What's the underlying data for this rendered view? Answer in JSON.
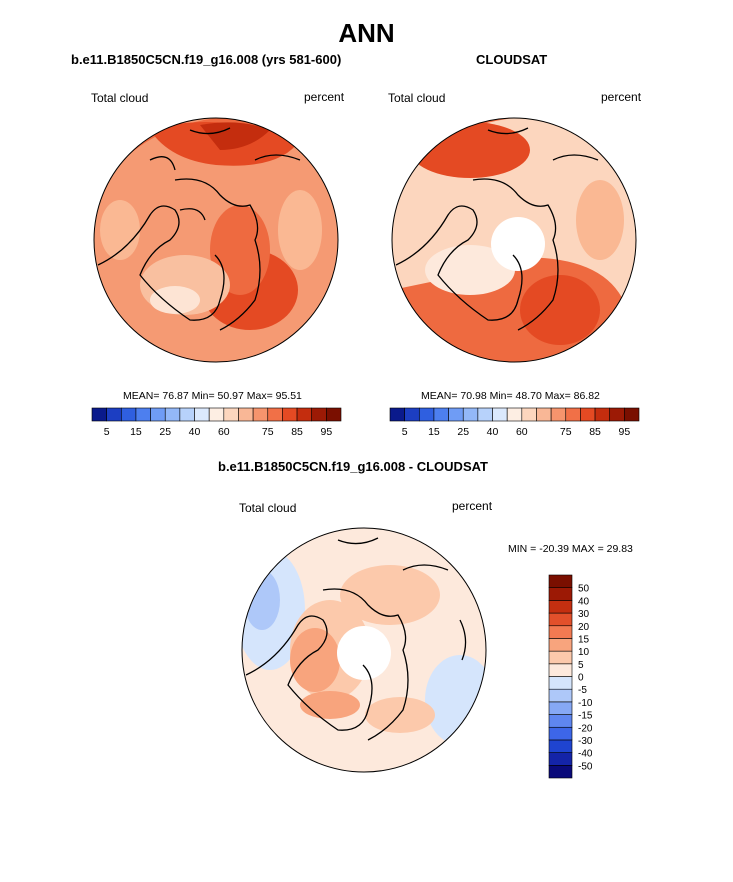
{
  "title": "ANN",
  "panels": [
    {
      "subtitle": "b.e11.B1850C5CN.f19_g16.008 (yrs 581-600)",
      "left_label": "Total cloud",
      "right_label": "percent",
      "stats": {
        "mean": "76.87",
        "min": "50.97",
        "max": "95.51"
      },
      "stats_text": "MEAN=  76.87  Min=  50.97  Max=  95.51"
    },
    {
      "subtitle": "CLOUDSAT",
      "left_label": "Total cloud",
      "right_label": "percent",
      "stats": {
        "mean": "70.98",
        "min": "48.70",
        "max": "86.82"
      },
      "stats_text": "MEAN=  70.98  Min=  48.70  Max=  86.82"
    },
    {
      "subtitle": "b.e11.B1850C5CN.f19_g16.008 - CLOUDSAT",
      "left_label": "Total cloud",
      "right_label": "percent",
      "stats": {
        "min": "-20.39",
        "max": "29.83"
      },
      "stats_text": "MIN = -20.39 MAX =  29.83"
    }
  ],
  "chart_data": [
    {
      "type": "heatmap",
      "projection": "north-polar-stereographic",
      "variable": "Total cloud",
      "units": "percent",
      "mean": 76.87,
      "min": 50.97,
      "max": 95.51,
      "colorbar": {
        "orientation": "horizontal",
        "levels": [
          5,
          10,
          15,
          20,
          25,
          30,
          40,
          50,
          60,
          65,
          70,
          75,
          80,
          85,
          90,
          95
        ],
        "tick_labels": [
          "5",
          "15",
          "25",
          "40",
          "60",
          "75",
          "85",
          "95"
        ],
        "colors": [
          "#0a1a8c",
          "#1c3ec2",
          "#2f5fe0",
          "#4d7fef",
          "#6f9cf5",
          "#93b8f8",
          "#b7d2fb",
          "#dbe9fd",
          "#fdeee3",
          "#fcd6be",
          "#f9b796",
          "#f6946d",
          "#f17047",
          "#e44a23",
          "#c42d0e",
          "#9c1a05",
          "#7a0f00"
        ]
      }
    },
    {
      "type": "heatmap",
      "projection": "north-polar-stereographic",
      "variable": "Total cloud",
      "units": "percent",
      "mean": 70.98,
      "min": 48.7,
      "max": 86.82,
      "colorbar": {
        "orientation": "horizontal",
        "levels": [
          5,
          10,
          15,
          20,
          25,
          30,
          40,
          50,
          60,
          65,
          70,
          75,
          80,
          85,
          90,
          95
        ],
        "tick_labels": [
          "5",
          "15",
          "25",
          "40",
          "60",
          "75",
          "85",
          "95"
        ],
        "colors": [
          "#0a1a8c",
          "#1c3ec2",
          "#2f5fe0",
          "#4d7fef",
          "#6f9cf5",
          "#93b8f8",
          "#b7d2fb",
          "#dbe9fd",
          "#fdeee3",
          "#fcd6be",
          "#f9b796",
          "#f6946d",
          "#f17047",
          "#e44a23",
          "#c42d0e",
          "#9c1a05",
          "#7a0f00"
        ]
      }
    },
    {
      "type": "heatmap",
      "projection": "north-polar-stereographic",
      "variable": "Total cloud difference",
      "units": "percent",
      "min": -20.39,
      "max": 29.83,
      "colorbar": {
        "orientation": "vertical",
        "levels": [
          -50,
          -40,
          -30,
          -20,
          -15,
          -10,
          -5,
          0,
          5,
          10,
          15,
          20,
          30,
          40,
          50
        ],
        "tick_labels": [
          "-50",
          "-40",
          "-30",
          "-20",
          "-15",
          "-10",
          "-5",
          "0",
          "5",
          "10",
          "15",
          "20",
          "30",
          "40",
          "50"
        ],
        "colors": [
          "#0a0a7a",
          "#1424a8",
          "#1f44d0",
          "#3d66e8",
          "#5f86f0",
          "#86a8f5",
          "#aec8f9",
          "#d5e5fc",
          "#fde9dc",
          "#fcc9ab",
          "#f8a47d",
          "#f27a52",
          "#e2502b",
          "#c42f10",
          "#9c1905",
          "#7a0f00"
        ]
      }
    }
  ]
}
